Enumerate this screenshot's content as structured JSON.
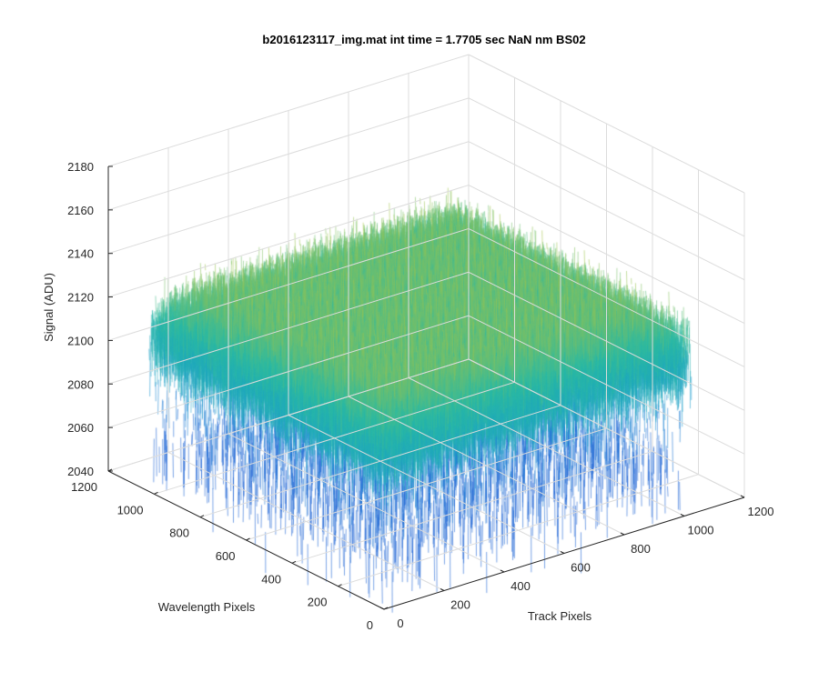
{
  "chart_data": {
    "type": "surface",
    "title": "b2016123117_img.mat int time = 1.7705 sec  NaN nm BS02",
    "xlabel": "Track Pixels",
    "ylabel": "Wavelength Pixels",
    "zlabel": "Signal (ADU)",
    "xlim": [
      0,
      1200
    ],
    "ylim": [
      0,
      1200
    ],
    "zlim": [
      2040,
      2180
    ],
    "xticks": [
      0,
      200,
      400,
      600,
      800,
      1000,
      1200
    ],
    "yticks": [
      0,
      200,
      400,
      600,
      800,
      1000,
      1200
    ],
    "zticks": [
      2040,
      2060,
      2080,
      2100,
      2120,
      2140,
      2160,
      2180
    ],
    "xtick_labels": [
      "0",
      "200",
      "400",
      "600",
      "800",
      "1000",
      "1200"
    ],
    "ytick_labels": [
      "0",
      "200",
      "400",
      "600",
      "800",
      "1000",
      "1200"
    ],
    "ztick_labels": [
      "2040",
      "2060",
      "2080",
      "2100",
      "2120",
      "2140",
      "2160",
      "2180"
    ],
    "data_extent": {
      "x": [
        1,
        1024
      ],
      "y": [
        1,
        1024
      ]
    },
    "surface": {
      "approx_mean": 2118,
      "approx_min": 2045,
      "approx_max": 2168,
      "description_free": true
    },
    "colormap": "parula",
    "grid": true,
    "colors": {
      "low": "#0f6fd6",
      "mid": "#26b5a8",
      "high": "#f2c82a",
      "axis": "#262626",
      "grid": "#dcdcdc"
    }
  }
}
